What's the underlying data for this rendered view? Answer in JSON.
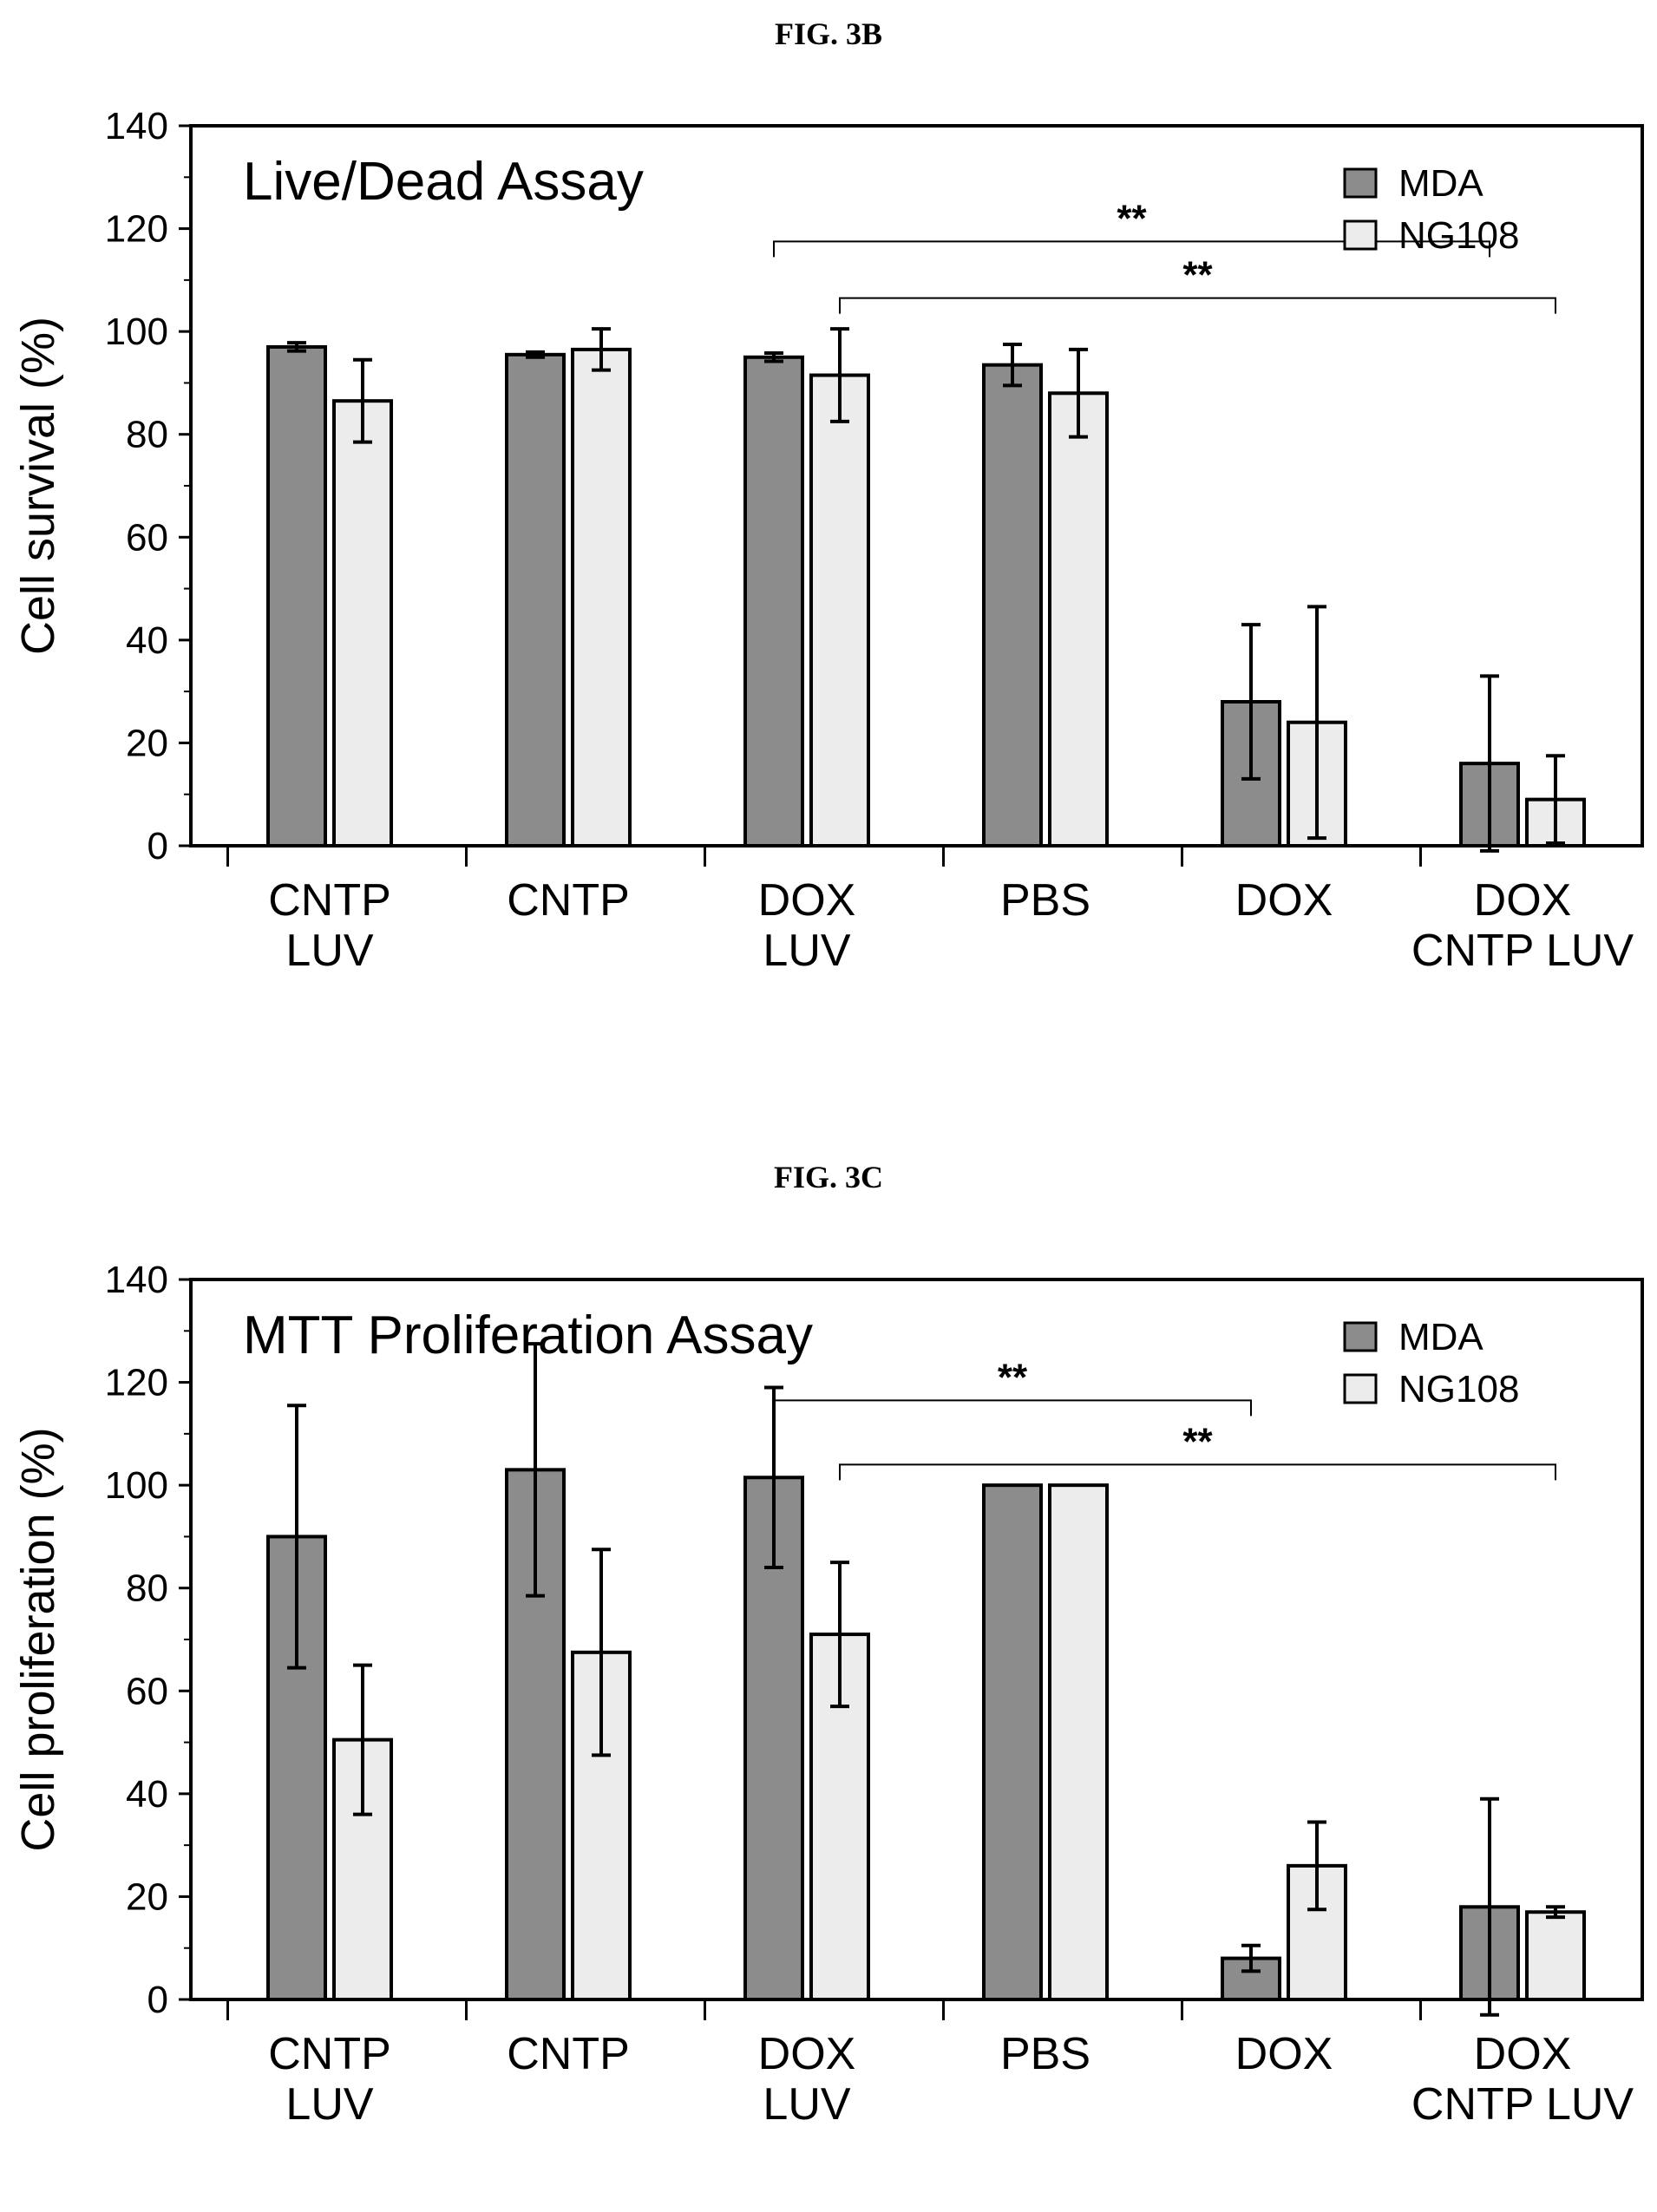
{
  "figures": [
    {
      "label": "FIG. 3B"
    },
    {
      "label": "FIG. 3C"
    }
  ],
  "chart_data": [
    {
      "type": "bar",
      "title": "Live/Dead Assay",
      "ylabel": "Cell survival (%)",
      "xlabel": "",
      "ylim": [
        0,
        140
      ],
      "yticks": [
        "0",
        "20",
        "40",
        "60",
        "80",
        "100",
        "120",
        "140"
      ],
      "legend_position": "top-right",
      "categories": [
        "CNTP\nLUV",
        "CNTP",
        "DOX\nLUV",
        "PBS",
        "DOX",
        "DOX\nCNTP LUV"
      ],
      "series": [
        {
          "name": "MDA",
          "color": "#8c8c8c",
          "values": [
            97,
            95.5,
            95,
            93.5,
            28,
            16
          ],
          "errors": [
            0.8,
            0.5,
            0.8,
            4,
            15,
            17
          ]
        },
        {
          "name": "NG108",
          "color": "#ececec",
          "values": [
            86.5,
            96.5,
            91.5,
            88,
            24,
            9
          ],
          "errors": [
            8,
            4,
            9,
            8.5,
            22.5,
            8.5
          ]
        }
      ],
      "significance": [
        {
          "label": "**",
          "from": "DOX\nLUV (MDA)",
          "to": "DOX\nCNTP LUV (MDA)"
        },
        {
          "label": "**",
          "from": "DOX\nLUV (NG108)",
          "to": "DOX\nCNTP LUV (NG108)"
        }
      ]
    },
    {
      "type": "bar",
      "title": "MTT Proliferation Assay",
      "ylabel": "Cell proliferation (%)",
      "xlabel": "",
      "ylim": [
        0,
        140
      ],
      "yticks": [
        "0",
        "20",
        "40",
        "60",
        "80",
        "100",
        "120",
        "140"
      ],
      "legend_position": "top-right",
      "categories": [
        "CNTP\nLUV",
        "CNTP",
        "DOX\nLUV",
        "PBS",
        "DOX",
        "DOX\nCNTP LUV"
      ],
      "series": [
        {
          "name": "MDA",
          "color": "#8c8c8c",
          "values": [
            90,
            103,
            101.5,
            100,
            8,
            18
          ],
          "errors": [
            25.5,
            24.5,
            17.5,
            0,
            2.5,
            21
          ]
        },
        {
          "name": "NG108",
          "color": "#ececec",
          "values": [
            50.5,
            67.5,
            71,
            100,
            26,
            17
          ],
          "errors": [
            14.5,
            20,
            14,
            0,
            8.5,
            1
          ]
        }
      ],
      "significance": [
        {
          "label": "**",
          "from": "DOX\nLUV (MDA)",
          "to": "DOX (MDA)"
        },
        {
          "label": "**",
          "from": "DOX\nLUV (NG108)",
          "to": "DOX\nCNTP LUV (NG108)"
        }
      ]
    }
  ]
}
